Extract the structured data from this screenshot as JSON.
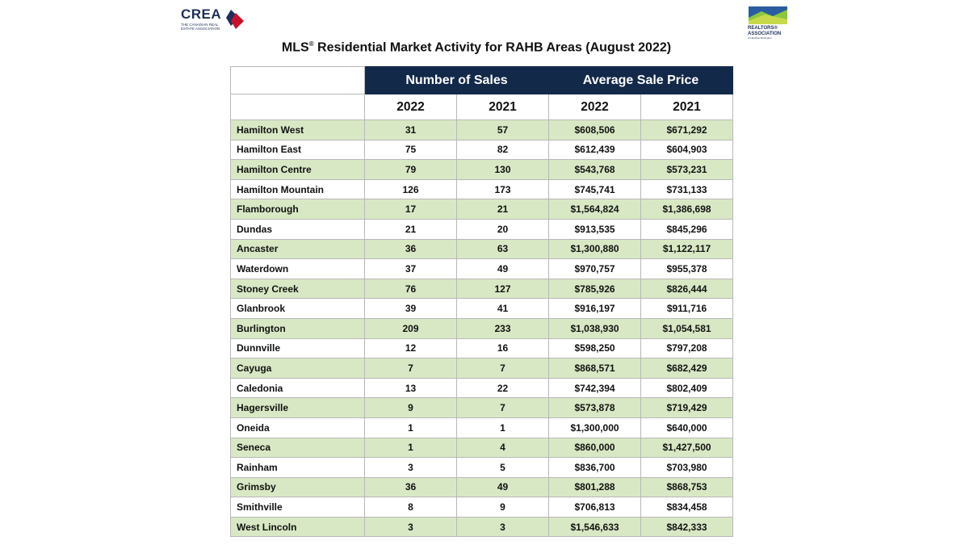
{
  "logos": {
    "crea": {
      "word": "CREA",
      "subtitle": "THE CANADIAN REAL ESTATE ASSOCIATION",
      "mark_colors": [
        "#1d2f5a",
        "#c8102e"
      ]
    },
    "realtors": {
      "word": "REALTORS® ASSOCIATION",
      "subtitle": "of Hamilton-Burlington",
      "mark_colors": [
        "#2a5d9f",
        "#8cc63f"
      ]
    }
  },
  "title": {
    "prefix": "MLS",
    "registered": "®",
    "rest": " Residential Market Activity for RAHB Areas (August 2022)"
  },
  "table": {
    "groups": [
      "Number of Sales",
      "Average Sale Price"
    ],
    "years": [
      "2022",
      "2021",
      "2022",
      "2021"
    ],
    "colors": {
      "header_bg": "#13294a",
      "shade_bg": "#d8e8c4"
    },
    "rows": [
      {
        "area": "Hamilton West",
        "sales_2022": "31",
        "sales_2021": "57",
        "price_2022": "$608,506",
        "price_2021": "$671,292"
      },
      {
        "area": "Hamilton East",
        "sales_2022": "75",
        "sales_2021": "82",
        "price_2022": "$612,439",
        "price_2021": "$604,903"
      },
      {
        "area": "Hamilton Centre",
        "sales_2022": "79",
        "sales_2021": "130",
        "price_2022": "$543,768",
        "price_2021": "$573,231"
      },
      {
        "area": "Hamilton Mountain",
        "sales_2022": "126",
        "sales_2021": "173",
        "price_2022": "$745,741",
        "price_2021": "$731,133"
      },
      {
        "area": "Flamborough",
        "sales_2022": "17",
        "sales_2021": "21",
        "price_2022": "$1,564,824",
        "price_2021": "$1,386,698"
      },
      {
        "area": "Dundas",
        "sales_2022": "21",
        "sales_2021": "20",
        "price_2022": "$913,535",
        "price_2021": "$845,296"
      },
      {
        "area": "Ancaster",
        "sales_2022": "36",
        "sales_2021": "63",
        "price_2022": "$1,300,880",
        "price_2021": "$1,122,117"
      },
      {
        "area": "Waterdown",
        "sales_2022": "37",
        "sales_2021": "49",
        "price_2022": "$970,757",
        "price_2021": "$955,378"
      },
      {
        "area": "Stoney Creek",
        "sales_2022": "76",
        "sales_2021": "127",
        "price_2022": "$785,926",
        "price_2021": "$826,444"
      },
      {
        "area": "Glanbrook",
        "sales_2022": "39",
        "sales_2021": "41",
        "price_2022": "$916,197",
        "price_2021": "$911,716"
      },
      {
        "area": "Burlington",
        "sales_2022": "209",
        "sales_2021": "233",
        "price_2022": "$1,038,930",
        "price_2021": "$1,054,581"
      },
      {
        "area": "Dunnville",
        "sales_2022": "12",
        "sales_2021": "16",
        "price_2022": "$598,250",
        "price_2021": "$797,208"
      },
      {
        "area": "Cayuga",
        "sales_2022": "7",
        "sales_2021": "7",
        "price_2022": "$868,571",
        "price_2021": "$682,429"
      },
      {
        "area": "Caledonia",
        "sales_2022": "13",
        "sales_2021": "22",
        "price_2022": "$742,394",
        "price_2021": "$802,409"
      },
      {
        "area": "Hagersville",
        "sales_2022": "9",
        "sales_2021": "7",
        "price_2022": "$573,878",
        "price_2021": "$719,429"
      },
      {
        "area": "Oneida",
        "sales_2022": "1",
        "sales_2021": "1",
        "price_2022": "$1,300,000",
        "price_2021": "$640,000"
      },
      {
        "area": "Seneca",
        "sales_2022": "1",
        "sales_2021": "4",
        "price_2022": "$860,000",
        "price_2021": "$1,427,500"
      },
      {
        "area": "Rainham",
        "sales_2022": "3",
        "sales_2021": "5",
        "price_2022": "$836,700",
        "price_2021": "$703,980"
      },
      {
        "area": "Grimsby",
        "sales_2022": "36",
        "sales_2021": "49",
        "price_2022": "$801,288",
        "price_2021": "$868,753"
      },
      {
        "area": "Smithville",
        "sales_2022": "8",
        "sales_2021": "9",
        "price_2022": "$706,813",
        "price_2021": "$834,458"
      },
      {
        "area": "West Lincoln",
        "sales_2022": "3",
        "sales_2021": "3",
        "price_2022": "$1,546,633",
        "price_2021": "$842,333"
      }
    ]
  }
}
